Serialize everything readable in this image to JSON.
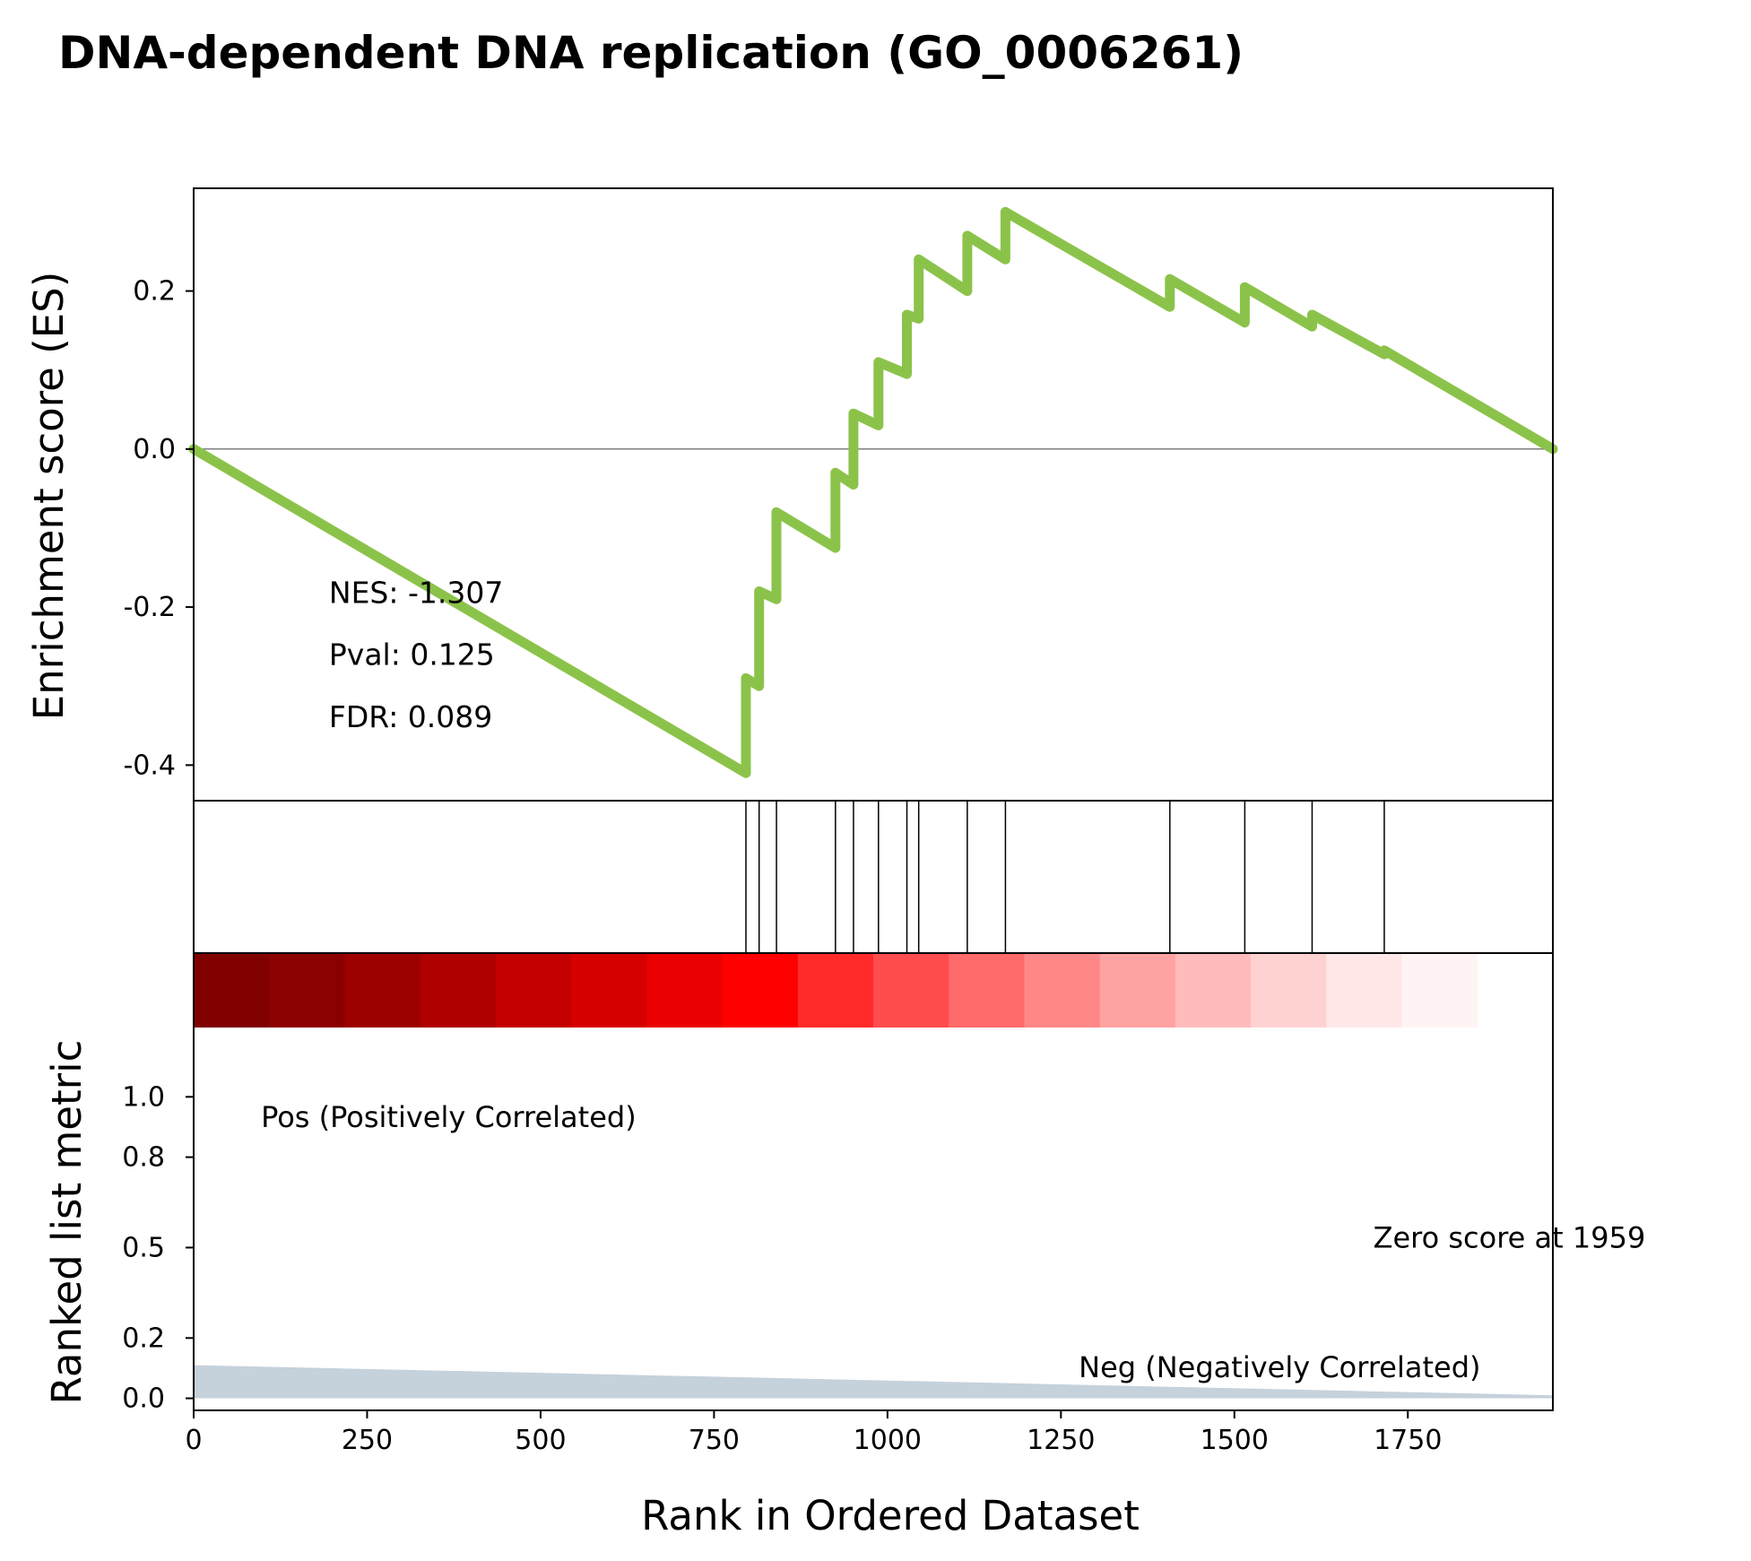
{
  "chart_data": {
    "type": "line",
    "title": "DNA-dependent DNA replication (GO_0006261)",
    "xlabel": "Rank in Ordered Dataset",
    "xlim": [
      0,
      1959
    ],
    "x_ticks": [
      0,
      250,
      500,
      750,
      1000,
      1250,
      1500,
      1750
    ],
    "es_panel": {
      "ylabel": "Enrichment score (ES)",
      "ylim": [
        -0.445,
        0.33
      ],
      "y_ticks": [
        0.2,
        0.0,
        -0.2,
        -0.4
      ],
      "y_tick_labels": [
        "0.2",
        "0.0",
        "-0.2",
        "-0.4"
      ],
      "line_color": "#8bc34a",
      "zero_line": true,
      "series": [
        {
          "x": [
            0,
            796,
            796,
            815,
            815,
            840,
            840,
            925,
            925,
            951,
            951,
            987,
            987,
            1028,
            1028,
            1045,
            1045,
            1115,
            1115,
            1170,
            1170,
            1407,
            1407,
            1515,
            1515,
            1612,
            1612,
            1716,
            1716,
            1959
          ],
          "y": [
            0.0,
            -0.41,
            -0.29,
            -0.3,
            -0.18,
            -0.19,
            -0.08,
            -0.125,
            -0.03,
            -0.045,
            0.045,
            0.03,
            0.11,
            0.095,
            0.17,
            0.165,
            0.24,
            0.2,
            0.27,
            0.24,
            0.3,
            0.18,
            0.215,
            0.16,
            0.205,
            0.155,
            0.17,
            0.12,
            0.125,
            0.0
          ]
        }
      ],
      "annotations": [
        {
          "text": "NES: -1.307",
          "x": 195,
          "y": -0.195
        },
        {
          "text": "Pval: 0.125",
          "x": 195,
          "y": -0.273
        },
        {
          "text": "FDR: 0.089",
          "x": 195,
          "y": -0.352
        }
      ]
    },
    "hits_panel": {
      "hit_ranks": [
        796,
        815,
        840,
        925,
        951,
        987,
        1028,
        1045,
        1115,
        1170,
        1407,
        1515,
        1612,
        1716
      ]
    },
    "heatmap_bar": {
      "colors": [
        "#800000",
        "#8b0000",
        "#9e0000",
        "#b00000",
        "#c40000",
        "#d60000",
        "#ea0000",
        "#ff0000",
        "#ff2a2a",
        "#ff4c4c",
        "#ff6a6a",
        "#ff8787",
        "#ffa2a2",
        "#ffbbbb",
        "#ffd2d2",
        "#ffe7e7",
        "#fff4f4",
        "#ffffff"
      ]
    },
    "ranked_panel": {
      "ylabel": "Ranked list metric",
      "ylim": [
        -0.04,
        1.23
      ],
      "y_ticks": [
        0.0,
        0.2,
        0.5,
        0.8,
        1.0
      ],
      "y_tick_labels": [
        "0.0",
        "0.2",
        "0.5",
        "0.8",
        "1.0"
      ],
      "fill_color": "#c5d1db",
      "area": {
        "x": [
          0,
          1959
        ],
        "y": [
          0.11,
          0.01
        ]
      },
      "annotations": [
        {
          "text": "Pos (Positively Correlated)",
          "x": 97,
          "y": 0.9,
          "color": "#ff0000",
          "anchor": "start"
        },
        {
          "text": "Zero score at 1959",
          "x": 1700,
          "y": 0.5,
          "color": "#000000",
          "anchor": "start"
        },
        {
          "text": "Neg (Negatively Correlated)",
          "x": 1855,
          "y": 0.07,
          "color": "#0000ff",
          "anchor": "end"
        }
      ]
    }
  }
}
